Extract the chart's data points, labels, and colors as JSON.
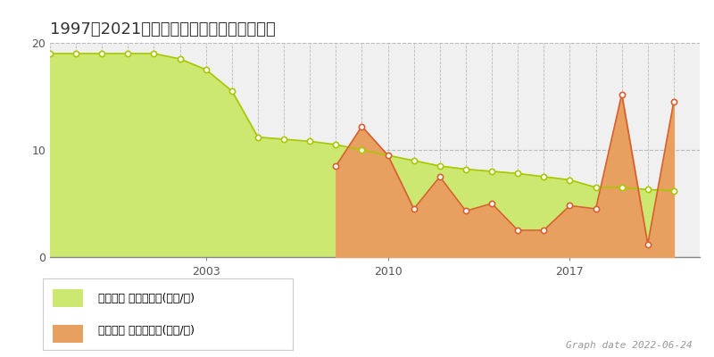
{
  "title": "1997～2021年　西宇和郡伊方町の地価推移",
  "graph_date": "Graph date 2022-06-24",
  "legend1": "地価公示 平均嵪単価(万円/嵪)",
  "legend2": "取引価格 平均嵪単価(万円/嵪)",
  "chika_years": [
    1997,
    1998,
    1999,
    2000,
    2001,
    2002,
    2003,
    2004,
    2005,
    2006,
    2007,
    2008,
    2009,
    2010,
    2011,
    2012,
    2013,
    2014,
    2015,
    2016,
    2017,
    2018,
    2019,
    2020,
    2021
  ],
  "chika_values": [
    19.0,
    19.0,
    19.0,
    19.0,
    19.0,
    18.5,
    17.5,
    15.5,
    11.2,
    11.0,
    10.8,
    10.5,
    10.0,
    9.5,
    9.0,
    8.5,
    8.2,
    8.0,
    7.8,
    7.5,
    7.2,
    6.5,
    6.5,
    6.3,
    6.2
  ],
  "torihiki_years": [
    2008,
    2009,
    2010,
    2011,
    2012,
    2013,
    2014,
    2015,
    2016,
    2017,
    2018,
    2019,
    2020,
    2021
  ],
  "torihiki_values": [
    8.5,
    12.2,
    9.5,
    4.5,
    7.5,
    4.3,
    5.0,
    2.5,
    2.5,
    4.8,
    4.5,
    15.2,
    1.2,
    14.5
  ],
  "chika_fill_color": "#cce870",
  "chika_line_color": "#a8c800",
  "torihiki_fill_color": "#e8a060",
  "torihiki_line_color": "#d86030",
  "torihiki_above_color": "#e8b0a0",
  "chika_marker_edge": "#888800",
  "torihiki_marker_edge": "#cc5020",
  "bg_color": "#f0f0f0",
  "plot_bg_color": "#f0f0f0",
  "grid_color": "#bbbbbb",
  "ylim": [
    0,
    20
  ],
  "yticks": [
    0,
    10,
    20
  ],
  "xtick_labels": [
    "2003",
    "2010",
    "2017"
  ],
  "xtick_positions": [
    2003,
    2010,
    2017
  ],
  "xmin": 1997,
  "xmax": 2022,
  "fig_width": 8.0,
  "fig_height": 4.0,
  "title_fontsize": 13,
  "tick_fontsize": 9,
  "legend_fontsize": 9,
  "date_fontsize": 8
}
